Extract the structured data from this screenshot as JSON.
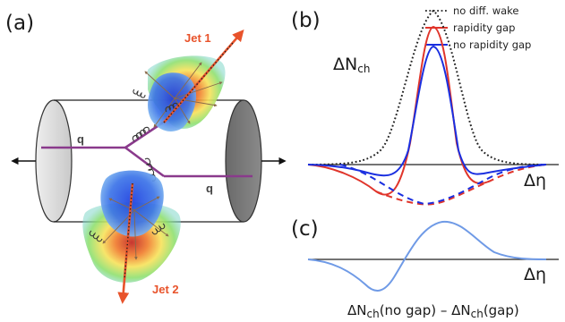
{
  "panels": {
    "a": "(a)",
    "b": "(b)",
    "c": "(c)"
  },
  "diagram_a": {
    "jet1_label": "Jet 1",
    "jet2_label": "Jet 2",
    "quark_label_upper": "q",
    "quark_label_lower": "q",
    "colors": {
      "jet": "#e8532b",
      "quark": "#8a3a8c",
      "wake": "#2f55e0"
    }
  },
  "plot_b": {
    "ylabel_main": "ΔN",
    "ylabel_sub": "ch",
    "xlabel": "Δη",
    "legend": [
      {
        "label": "no diff. wake",
        "color": "#222222",
        "style": "dotted"
      },
      {
        "label": "rapidity gap",
        "color": "#e0352b",
        "style": "solid"
      },
      {
        "label": "no rapidity gap",
        "color": "#1a2fe0",
        "style": "solid"
      }
    ]
  },
  "plot_c": {
    "xlabel": "Δη",
    "caption_a": "ΔN",
    "caption_sub1": "ch",
    "caption_b": "(no gap) – ΔN",
    "caption_sub2": "ch",
    "caption_c": "(gap)",
    "color": "#6f9ae6"
  },
  "chart_data": [
    {
      "type": "line",
      "series": [
        {
          "name": "no diff. wake",
          "x": [
            -3,
            -2,
            -1,
            -0.5,
            0,
            0.5,
            1,
            2,
            3
          ],
          "y": [
            0,
            0.02,
            0.3,
            0.75,
            1.0,
            0.75,
            0.3,
            0.02,
            0
          ]
        },
        {
          "name": "rapidity gap",
          "x": [
            -3,
            -2,
            -1.5,
            -1,
            -0.5,
            0,
            0.5,
            1,
            2,
            3
          ],
          "y": [
            0,
            -0.05,
            -0.25,
            -0.18,
            0.45,
            0.9,
            0.45,
            -0.18,
            -0.05,
            0
          ]
        },
        {
          "name": "no rapidity gap",
          "x": [
            -3,
            -2,
            -1.5,
            -1,
            -0.5,
            0,
            0.5,
            1,
            2,
            3
          ],
          "y": [
            0,
            -0.02,
            -0.1,
            -0.1,
            0.4,
            0.8,
            0.45,
            -0.05,
            -0.02,
            0
          ]
        }
      ],
      "xlabel": "Δη",
      "ylabel": "ΔNch"
    },
    {
      "type": "line",
      "series": [
        {
          "name": "",
          "x": [
            -3,
            -2,
            -1.3,
            -0.5,
            0,
            0.5,
            1.3,
            2,
            3
          ],
          "y": [
            0,
            -0.1,
            -0.5,
            -0.3,
            0,
            0.3,
            0.5,
            0.1,
            0
          ]
        }
      ],
      "xlabel": "Δη"
    }
  ]
}
